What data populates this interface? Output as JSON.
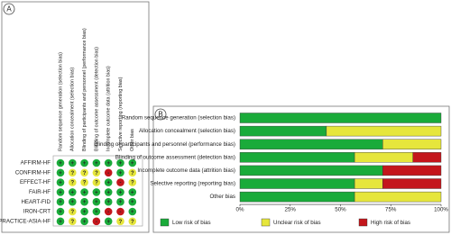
{
  "chart_data": [
    {
      "type": "grid",
      "panel_label": "A",
      "columns": [
        "Random sequence generation (selection bias)",
        "Allocation concealment (selection bias)",
        "Blinding of participants and personnel (performance bias)",
        "Blinding of outcome assessment (detection bias)",
        "Incomplete outcome data (attrition bias)",
        "Selective reporting (reporting bias)",
        "Other bias"
      ],
      "rows": [
        "AFFIRM-HF",
        "CONFIRM-HF",
        "EFFECT-HF",
        "FAIR-HF",
        "HEART-FID",
        "IRON-CRT",
        "PRACTICE-ASIA-HF"
      ],
      "cells": [
        [
          "+",
          "+",
          "+",
          "+",
          "+",
          "+",
          "+"
        ],
        [
          "+",
          "?",
          "?",
          "?",
          "-",
          "+",
          "?"
        ],
        [
          "+",
          "?",
          "?",
          "?",
          "+",
          "-",
          "?"
        ],
        [
          "+",
          "+",
          "+",
          "+",
          "+",
          "+",
          "+"
        ],
        [
          "+",
          "+",
          "+",
          "+",
          "+",
          "+",
          "+"
        ],
        [
          "+",
          "?",
          "+",
          "+",
          "-",
          "-",
          "+"
        ],
        [
          "+",
          "?",
          "+",
          "-",
          "+",
          "?",
          "?"
        ]
      ],
      "symbols": [
        "+",
        "?",
        "-"
      ],
      "symbol_colors": [
        "#1aab3a",
        "#e6e63c",
        "#c4161c"
      ]
    },
    {
      "type": "stacked_barh",
      "panel_label": "B",
      "categories": [
        "Random sequence generation (selection bias)",
        "Allocation concealment (selection bias)",
        "Blinding of participants and personnel (performance bias)",
        "Blinding of outcome assessment (detection bias)",
        "Incomplete outcome data (attrition bias)",
        "Selective reporting (reporting bias)",
        "Other bias"
      ],
      "series": [
        {
          "name": "Low risk of bias",
          "color": "#1aab3a",
          "values": [
            100,
            43,
            71,
            57,
            71,
            57,
            57
          ]
        },
        {
          "name": "Unclear risk of bias",
          "color": "#e6e63c",
          "values": [
            0,
            57,
            29,
            29,
            0,
            14,
            43
          ]
        },
        {
          "name": "High risk of bias",
          "color": "#c4161c",
          "values": [
            0,
            0,
            0,
            14,
            29,
            29,
            0
          ]
        }
      ],
      "xlim": [
        0,
        100
      ],
      "xticks": [
        {
          "value": 0,
          "label": "0%"
        },
        {
          "value": 25,
          "label": "25%"
        },
        {
          "value": 50,
          "label": "50%"
        },
        {
          "value": 75,
          "label": "75%"
        },
        {
          "value": 100,
          "label": "100%"
        }
      ]
    }
  ]
}
